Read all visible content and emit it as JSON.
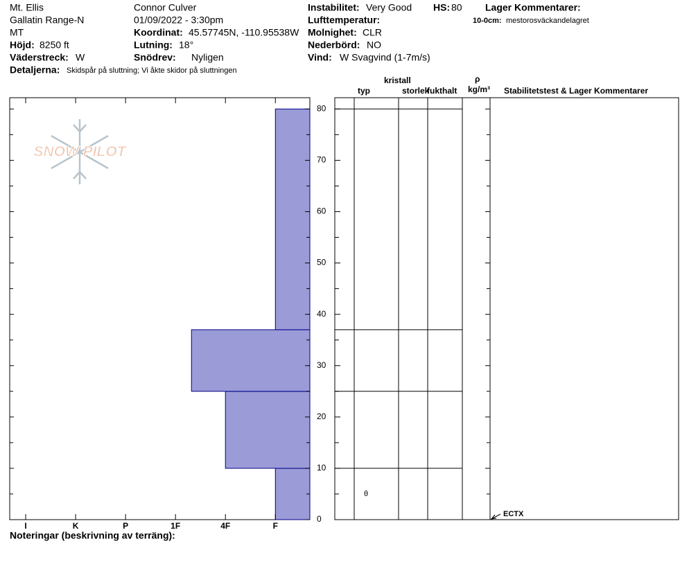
{
  "header": {
    "location": "Mt. Ellis",
    "range": "Gallatin Range-N",
    "state": "MT",
    "elevation_label": "Höjd:",
    "elevation": "8250 ft",
    "aspect_label": "Väderstreck:",
    "aspect": "W",
    "details_label": "Detaljerna:",
    "details": "Skidspår på sluttning;  Vi åkte skidor på sluttningen",
    "observer": "Connor Culver",
    "datetime": "01/09/2022 - 3:30pm",
    "coord_label": "Koordinat:",
    "coord": "45.57745N, -110.95538W",
    "slope_label": "Lutning:",
    "slope": "18°",
    "wind_loading_label": "Snödrev:",
    "wind_loading": "Nyligen",
    "instability_label": "Instabilitet:",
    "instability": "Very Good",
    "hs_label": "HS:",
    "hs": "80",
    "air_temp_label": "Lufttemperatur:",
    "sky_label": "Molnighet:",
    "sky": "CLR",
    "precip_label": "Nederbörd:",
    "precip": "NO",
    "wind_label": "Vind:",
    "wind": "W Svagvind (1-7m/s)",
    "layer_comments_label": "Lager Kommentarer:",
    "layer_comment_range": "10-0cm:",
    "layer_comment": "mestorosväckandelagret"
  },
  "logo": "SNOW PILOT",
  "chart_data": {
    "type": "hardness-profile",
    "xticks": [
      {
        "value": 6,
        "label": "I"
      },
      {
        "value": 5,
        "label": "K"
      },
      {
        "value": 4,
        "label": "P"
      },
      {
        "value": 3,
        "label": "1F"
      },
      {
        "value": 2,
        "label": "4F"
      },
      {
        "value": 1,
        "label": "F"
      }
    ],
    "xlim": [
      6.32,
      0.31
    ],
    "ylim": [
      0,
      82.2
    ],
    "yticks": [
      0,
      10,
      20,
      30,
      40,
      50,
      60,
      70,
      80
    ],
    "yminorticks": [
      5,
      15,
      25,
      35,
      45,
      55,
      65,
      75
    ],
    "color": "#9b9bd7",
    "layers": {
      "bottom": [
        0,
        10,
        25,
        37
      ],
      "top": [
        10,
        25,
        37,
        80
      ],
      "hardness": [
        1,
        2,
        2.68,
        1
      ]
    },
    "grain_symbols": [
      {
        "depth": 5,
        "symbol": "θ"
      }
    ],
    "stability_tests": [
      {
        "depth": 0,
        "label": "ECTX"
      }
    ],
    "table_headers": {
      "crystal": "kristall",
      "type": "typ",
      "size": "storlek",
      "moisture": "fukthalt",
      "rho": "ρ",
      "density_unit": "kg/m³",
      "stability": "Stabilitetstest & Lager Kommentarer"
    }
  },
  "notes_label": "Noteringar (beskrivning av terräng):"
}
